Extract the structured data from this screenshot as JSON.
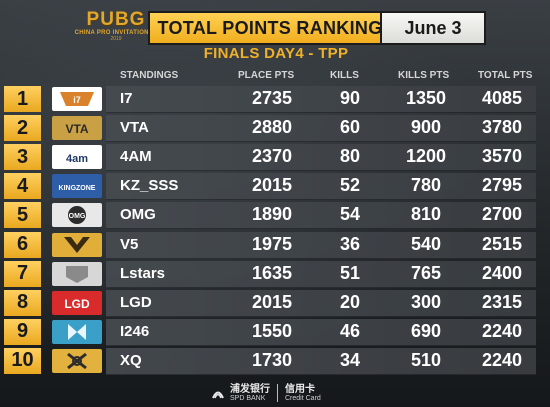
{
  "header": {
    "logo_main": "PUBG",
    "logo_sub": "CHINA PRO INVITATIONAL",
    "logo_year": "2019",
    "title": "TOTAL POINTS RANKING",
    "date": "June 3",
    "subtitle": "FINALS DAY4 - TPP"
  },
  "columns": {
    "standings": "STANDINGS",
    "place_pts": "PLACE PTS",
    "kills": "KILLS",
    "kills_pts": "KILLS PTS",
    "total_pts": "TOTAL PTS"
  },
  "rows": [
    {
      "rank": "1",
      "team": "I7",
      "place_pts": "2735",
      "kills": "90",
      "kills_pts": "1350",
      "total_pts": "4085",
      "logo_icon": "i7-logo-icon",
      "logo_bg": "#ffffff"
    },
    {
      "rank": "2",
      "team": "VTA",
      "place_pts": "2880",
      "kills": "60",
      "kills_pts": "900",
      "total_pts": "3780",
      "logo_icon": "vta-logo-icon",
      "logo_bg": "#c9a044"
    },
    {
      "rank": "3",
      "team": "4AM",
      "place_pts": "2370",
      "kills": "80",
      "kills_pts": "1200",
      "total_pts": "3570",
      "logo_icon": "4am-logo-icon",
      "logo_bg": "#ffffff"
    },
    {
      "rank": "4",
      "team": "KZ_SSS",
      "place_pts": "2015",
      "kills": "52",
      "kills_pts": "780",
      "total_pts": "2795",
      "logo_icon": "kz-sss-logo-icon",
      "logo_bg": "#2e5ea8"
    },
    {
      "rank": "5",
      "team": "OMG",
      "place_pts": "1890",
      "kills": "54",
      "kills_pts": "810",
      "total_pts": "2700",
      "logo_icon": "omg-logo-icon",
      "logo_bg": "#e8e8e8"
    },
    {
      "rank": "6",
      "team": "V5",
      "place_pts": "1975",
      "kills": "36",
      "kills_pts": "540",
      "total_pts": "2515",
      "logo_icon": "v5-logo-icon",
      "logo_bg": "#e1ae3a"
    },
    {
      "rank": "7",
      "team": "Lstars",
      "place_pts": "1635",
      "kills": "51",
      "kills_pts": "765",
      "total_pts": "2400",
      "logo_icon": "lstars-logo-icon",
      "logo_bg": "#d7d7d7"
    },
    {
      "rank": "8",
      "team": "LGD",
      "place_pts": "2015",
      "kills": "20",
      "kills_pts": "300",
      "total_pts": "2315",
      "logo_icon": "lgd-logo-icon",
      "logo_bg": "#d92b2b"
    },
    {
      "rank": "9",
      "team": "I246",
      "place_pts": "1550",
      "kills": "46",
      "kills_pts": "690",
      "total_pts": "2240",
      "logo_icon": "i246-logo-icon",
      "logo_bg": "#3aa0c8"
    },
    {
      "rank": "10",
      "team": "XQ",
      "place_pts": "1730",
      "kills": "34",
      "kills_pts": "510",
      "total_pts": "2240",
      "logo_icon": "xq-logo-icon",
      "logo_bg": "#e3b23e"
    }
  ],
  "footer": {
    "bank_cn": "浦发银行",
    "bank_en": "SPD BANK",
    "card_cn": "信用卡",
    "card_en": "Credit Card"
  },
  "colors": {
    "accent_gold": "#f0ae1e",
    "row_strip": "#474c51",
    "text": "#ffffff"
  }
}
